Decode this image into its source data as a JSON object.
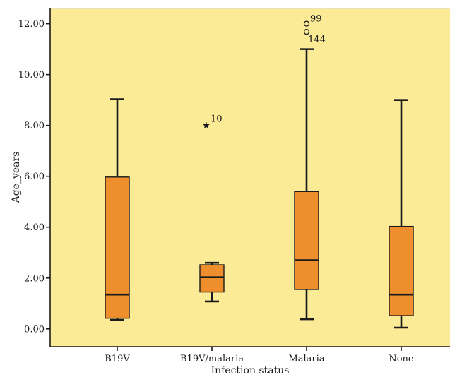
{
  "chart_data": {
    "type": "box",
    "xlabel": "Infection status",
    "ylabel": "Age_years",
    "ylim": [
      -0.7,
      12.6
    ],
    "yticks": [
      0,
      2,
      4,
      6,
      8,
      10,
      12
    ],
    "ytick_labels": [
      "0.00",
      "2.00",
      "4.00",
      "6.00",
      "8.00",
      "10.00",
      "12.00"
    ],
    "categories": [
      "B19V",
      "B19V/malaria",
      "Malaria",
      "None"
    ],
    "boxes": [
      {
        "category": "B19V",
        "whisker_low": 0.35,
        "q1": 0.42,
        "median": 1.35,
        "q3": 5.97,
        "whisker_high": 9.03,
        "outliers": []
      },
      {
        "category": "B19V/malaria",
        "whisker_low": 1.08,
        "q1": 1.45,
        "median": 2.03,
        "q3": 2.52,
        "whisker_high": 2.6,
        "outliers": [
          {
            "value": 8.0,
            "label": "10",
            "marker": "star"
          }
        ]
      },
      {
        "category": "Malaria",
        "whisker_low": 0.38,
        "q1": 1.55,
        "median": 2.7,
        "q3": 5.4,
        "whisker_high": 11.0,
        "outliers": [
          {
            "value": 12.0,
            "label": "99",
            "marker": "circle"
          },
          {
            "value": 11.68,
            "label": "144",
            "marker": "circle"
          }
        ]
      },
      {
        "category": "None",
        "whisker_low": 0.05,
        "q1": 0.52,
        "median": 1.35,
        "q3": 4.03,
        "whisker_high": 9.0,
        "outliers": []
      }
    ],
    "colors": {
      "plot_background": "#fbeb96",
      "box_fill": "#ee8e2c",
      "line": "#1a1a1a"
    },
    "grid": false,
    "legend": "none"
  }
}
